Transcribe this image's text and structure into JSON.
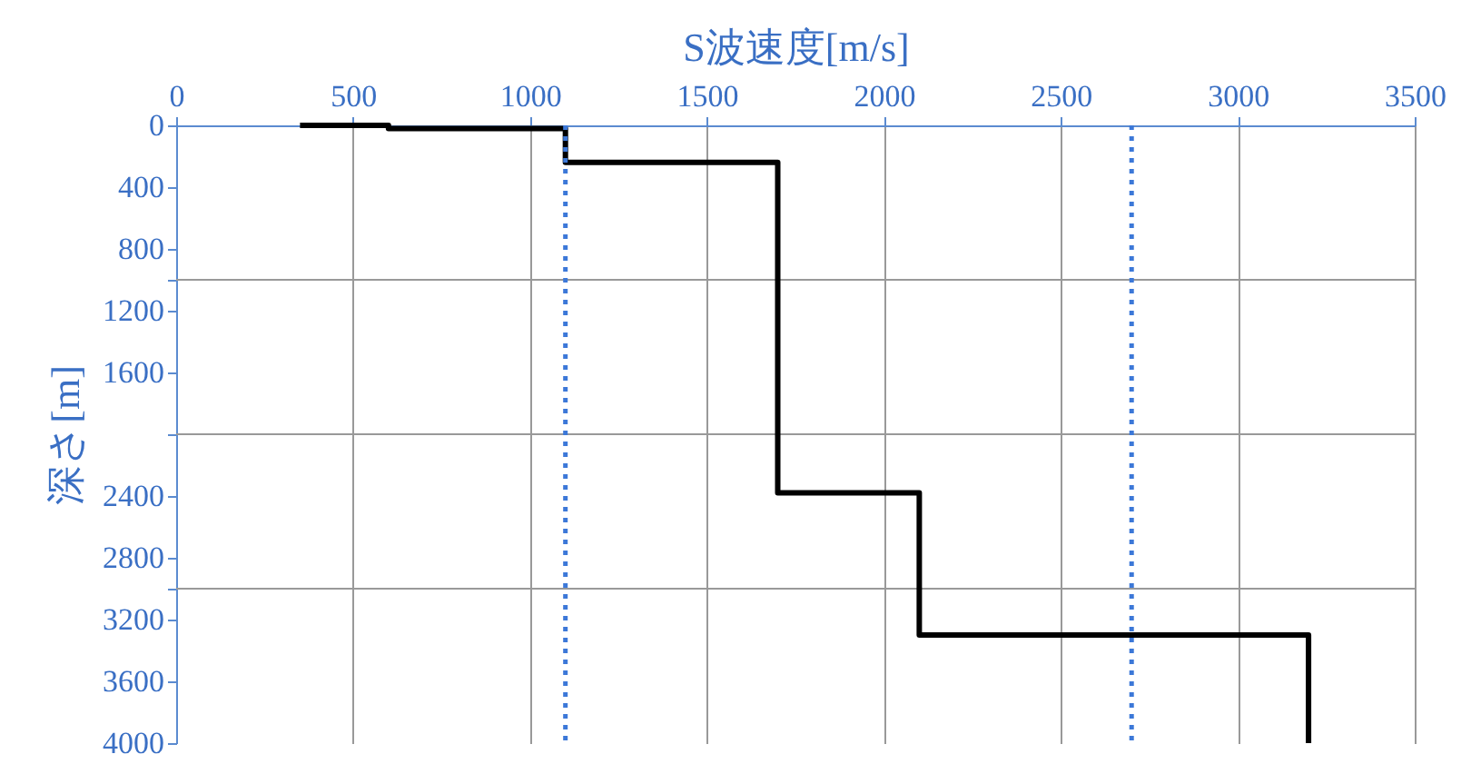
{
  "chart_data": {
    "type": "line",
    "xlabel": "S波速度[m/s]",
    "ylabel": "深さ[m]",
    "xlim": [
      0,
      3500
    ],
    "xticks": [
      0,
      500,
      1000,
      1500,
      2000,
      2500,
      3000,
      3500
    ],
    "ylim": [
      4000,
      0
    ],
    "yticks": [
      0,
      400,
      800,
      {
        "value": 1000,
        "label": null
      },
      1200,
      1600,
      {
        "value": 2000,
        "label": null
      },
      2400,
      2800,
      {
        "value": 3000,
        "label": null
      },
      3200,
      3600,
      4000
    ],
    "grid": true,
    "marker": "none",
    "line_style": "solid",
    "series": [
      {
        "type": "line",
        "color": "#000000",
        "x": [
          350,
          600,
          600,
          1100,
          1100,
          1700,
          1700,
          2100,
          2100,
          3200,
          3200
        ],
        "values": [
          0,
          0,
          20,
          20,
          240,
          240,
          2380,
          2380,
          3300,
          3300,
          4000
        ]
      }
    ],
    "ref_lines": [
      {
        "axis": "x",
        "value": 1100,
        "color": "#3c78d8",
        "line_style": "dotted"
      },
      {
        "axis": "x",
        "value": 2700,
        "color": "#3c78d8",
        "line_style": "dotted"
      }
    ]
  }
}
